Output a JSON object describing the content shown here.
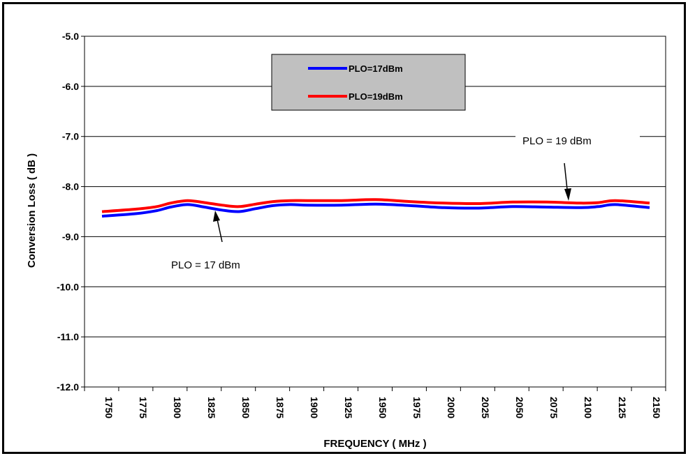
{
  "chart_data": {
    "type": "line",
    "title": "",
    "xlabel": "FREQUENCY ( MHz )",
    "ylabel": "Conversion Loss ( dB )",
    "ylim": [
      -12.0,
      -5.0
    ],
    "yticks": [
      "-5.0",
      "-6.0",
      "-7.0",
      "-8.0",
      "-9.0",
      "-10.0",
      "-11.0",
      "-12.0"
    ],
    "ytick_values": [
      -5,
      -6,
      -7,
      -8,
      -9,
      -10,
      -11,
      -12
    ],
    "categories": [
      "1750",
      "1775",
      "1800",
      "1825",
      "1850",
      "1875",
      "1900",
      "1925",
      "1950",
      "1975",
      "2000",
      "2025",
      "2050",
      "2075",
      "2100",
      "2125",
      "2150"
    ],
    "grid": "horizontal",
    "legend_position": "top-center",
    "series": [
      {
        "name": "PLO=17dBm",
        "color": "#0000ff",
        "x": [
          1750,
          1775,
          1790,
          1800,
          1812.5,
          1825,
          1837.5,
          1850,
          1862.5,
          1875,
          1887.5,
          1900,
          1925,
          1950,
          1975,
          2000,
          2025,
          2050,
          2075,
          2100,
          2112.5,
          2125,
          2150
        ],
        "values": [
          -8.59,
          -8.54,
          -8.48,
          -8.41,
          -8.36,
          -8.41,
          -8.47,
          -8.5,
          -8.44,
          -8.38,
          -8.36,
          -8.37,
          -8.37,
          -8.35,
          -8.38,
          -8.42,
          -8.43,
          -8.4,
          -8.41,
          -8.42,
          -8.4,
          -8.36,
          -8.42
        ]
      },
      {
        "name": "PLO=19dBm",
        "color": "#ff0000",
        "x": [
          1750,
          1775,
          1790,
          1800,
          1812.5,
          1825,
          1837.5,
          1850,
          1862.5,
          1875,
          1887.5,
          1900,
          1925,
          1950,
          1975,
          2000,
          2025,
          2050,
          2075,
          2100,
          2112.5,
          2125,
          2150
        ],
        "values": [
          -8.5,
          -8.45,
          -8.4,
          -8.33,
          -8.28,
          -8.32,
          -8.37,
          -8.4,
          -8.35,
          -8.3,
          -8.28,
          -8.28,
          -8.28,
          -8.26,
          -8.3,
          -8.33,
          -8.34,
          -8.31,
          -8.31,
          -8.33,
          -8.32,
          -8.28,
          -8.33
        ]
      }
    ],
    "annotations": [
      {
        "text": "PLO = 19 dBm",
        "points_to_series": "PLO=19dBm",
        "at_x": 2100
      },
      {
        "text": "PLO = 17 dBm",
        "points_to_series": "PLO=17dBm",
        "at_x": 1835
      }
    ]
  }
}
